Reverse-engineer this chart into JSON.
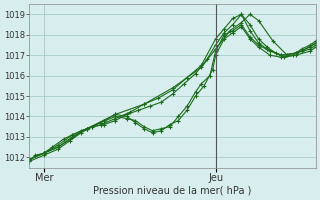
{
  "background_color": "#d8eeee",
  "grid_color": "#aacccc",
  "line_color": "#1a6b1a",
  "marker_color": "#1a6b1a",
  "ylabel_ticks": [
    1012,
    1013,
    1014,
    1015,
    1016,
    1017,
    1018,
    1019
  ],
  "ylim": [
    1011.5,
    1019.5
  ],
  "xlabel": "Pression niveau de la mer( hPa )",
  "xtick_labels": [
    "Mer",
    "Jeu"
  ],
  "xtick_positions": [
    0.05,
    0.65
  ],
  "vline_x": 0.65,
  "title": "",
  "series": [
    [
      0.0,
      1011.8,
      0.02,
      1012.1,
      0.05,
      1012.2,
      0.08,
      1012.5,
      0.12,
      1012.9,
      0.15,
      1013.1,
      0.18,
      1013.3,
      0.22,
      1013.5,
      0.26,
      1013.6,
      0.3,
      1013.8,
      0.34,
      1014.1,
      0.38,
      1014.3,
      0.42,
      1014.5,
      0.46,
      1014.7,
      0.5,
      1015.1,
      0.54,
      1015.6,
      0.58,
      1016.1,
      0.62,
      1016.8,
      0.65,
      1017.5,
      0.68,
      1018.1,
      0.71,
      1018.5,
      0.74,
      1019.0,
      0.77,
      1018.5,
      0.8,
      1017.8,
      0.83,
      1017.4,
      0.86,
      1017.1,
      0.89,
      1016.9,
      0.92,
      1017.0,
      0.95,
      1017.3,
      0.98,
      1017.5,
      1.0,
      1017.7
    ],
    [
      0.0,
      1011.9,
      0.05,
      1012.2,
      0.1,
      1012.5,
      0.15,
      1013.0,
      0.2,
      1013.4,
      0.25,
      1013.6,
      0.3,
      1013.9,
      0.35,
      1014.2,
      0.4,
      1014.6,
      0.45,
      1014.9,
      0.5,
      1015.3,
      0.55,
      1015.9,
      0.6,
      1016.5,
      0.65,
      1017.8,
      0.68,
      1018.3,
      0.71,
      1018.8,
      0.74,
      1019.0,
      0.77,
      1018.2,
      0.8,
      1017.6,
      0.83,
      1017.3,
      0.88,
      1017.0,
      0.93,
      1017.1,
      0.98,
      1017.4,
      1.0,
      1017.6
    ],
    [
      0.0,
      1011.9,
      0.05,
      1012.2,
      0.1,
      1012.6,
      0.15,
      1013.1,
      0.2,
      1013.4,
      0.25,
      1013.7,
      0.3,
      1014.0,
      0.34,
      1013.9,
      0.37,
      1013.8,
      0.4,
      1013.5,
      0.43,
      1013.3,
      0.46,
      1013.4,
      0.49,
      1013.5,
      0.52,
      1014.0,
      0.55,
      1014.5,
      0.58,
      1015.2,
      0.6,
      1015.6,
      0.63,
      1016.0,
      0.65,
      1017.2,
      0.68,
      1018.0,
      0.71,
      1018.2,
      0.74,
      1018.5,
      0.77,
      1017.9,
      0.8,
      1017.5,
      0.84,
      1017.2,
      0.88,
      1017.0,
      0.93,
      1017.1,
      0.98,
      1017.3,
      1.0,
      1017.5
    ],
    [
      0.0,
      1011.8,
      0.05,
      1012.1,
      0.1,
      1012.4,
      0.14,
      1012.8,
      0.18,
      1013.2,
      0.22,
      1013.5,
      0.26,
      1013.8,
      0.3,
      1014.1,
      0.34,
      1014.0,
      0.37,
      1013.7,
      0.4,
      1013.4,
      0.43,
      1013.2,
      0.46,
      1013.3,
      0.49,
      1013.6,
      0.52,
      1013.8,
      0.55,
      1014.3,
      0.58,
      1015.0,
      0.61,
      1015.5,
      0.64,
      1016.3,
      0.65,
      1017.0,
      0.68,
      1017.8,
      0.71,
      1018.1,
      0.74,
      1018.4,
      0.77,
      1017.8,
      0.8,
      1017.4,
      0.84,
      1017.0,
      0.88,
      1016.9,
      0.93,
      1017.0,
      0.98,
      1017.2,
      1.0,
      1017.4
    ],
    [
      0.0,
      1011.9,
      0.1,
      1012.5,
      0.2,
      1013.4,
      0.3,
      1014.1,
      0.4,
      1014.6,
      0.5,
      1015.4,
      0.6,
      1016.4,
      0.65,
      1017.3,
      0.7,
      1018.2,
      0.74,
      1018.6,
      0.77,
      1019.0,
      0.8,
      1018.7,
      0.85,
      1017.7,
      0.9,
      1017.0,
      0.95,
      1017.2,
      1.0,
      1017.6
    ]
  ]
}
